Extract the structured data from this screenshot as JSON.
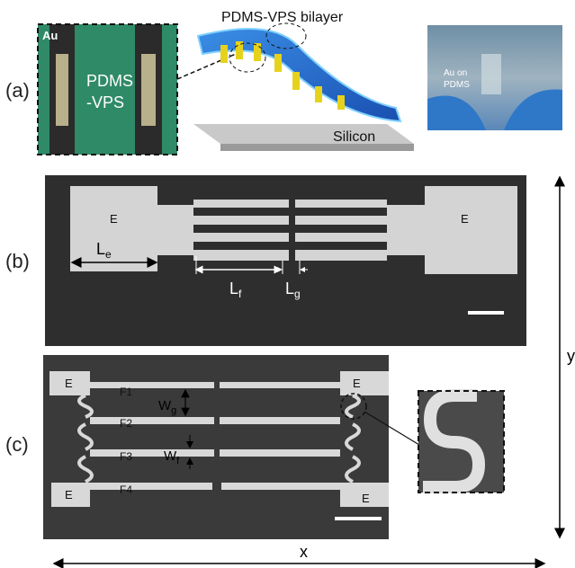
{
  "panels": {
    "a": {
      "label": "(a)",
      "micrograph": {
        "metal": "Au",
        "material": [
          "PDMS",
          "-VPS"
        ]
      },
      "schematic": {
        "layer": "PDMS-VPS bilayer",
        "substrate": "Silicon"
      },
      "photo": {
        "caption": [
          "Au on",
          "PDMS"
        ]
      }
    },
    "b": {
      "label": "(b)",
      "electrodes": [
        "E",
        "E"
      ],
      "dimensions": [
        {
          "main": "L",
          "sub": "e"
        },
        {
          "main": "L",
          "sub": "f"
        },
        {
          "main": "L",
          "sub": "g"
        }
      ]
    },
    "c": {
      "label": "(c)",
      "electrodes": [
        "E",
        "E",
        "E",
        "E"
      ],
      "fibers": [
        "F1",
        "F2",
        "F3",
        "F4"
      ],
      "dimensions": [
        {
          "main": "W",
          "sub": "g"
        },
        {
          "main": "W",
          "sub": "f"
        }
      ]
    }
  },
  "axes": {
    "x": "x",
    "y": "y"
  }
}
